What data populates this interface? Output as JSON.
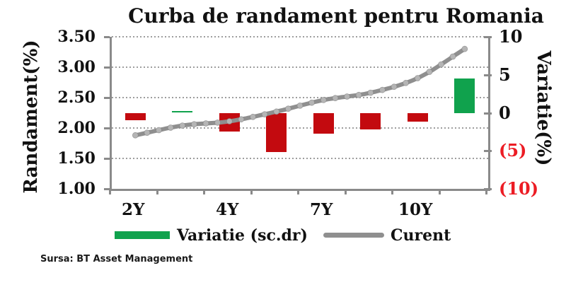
{
  "title": "Curba de randament pentru Romania",
  "source_note": "Sursa: BT Asset Management",
  "legend": {
    "variatie_label": "Variatie (sc.dr)",
    "curent_label": "Curent"
  },
  "colors": {
    "bar_negative": "#c30a0f",
    "bar_positive": "#10a24d",
    "line": "#8f8f8f",
    "marker": "#b5b5b5",
    "axis": "#8a8a8a",
    "gridline": "#9e9e9e",
    "negative_tick_text": "#ec1c24",
    "text": "#111111"
  },
  "chart_data": {
    "type": "combo (bar + line, dual axis)",
    "n_categories": 8,
    "x_tick_labels": [
      {
        "index": 0,
        "label": "2Y"
      },
      {
        "index": 2,
        "label": "4Y"
      },
      {
        "index": 4,
        "label": "7Y"
      },
      {
        "index": 6,
        "label": "10Y"
      }
    ],
    "left_axis": {
      "label": "Randament(%)",
      "min": 1.0,
      "max": 3.5,
      "ticks": [
        "3.50",
        "3.00",
        "2.50",
        "2.00",
        "1.50",
        "1.00"
      ],
      "gridlines": "dotted horizontal"
    },
    "right_axis": {
      "label": "Variatie(%)",
      "min": -10,
      "max": 10,
      "ticks": [
        {
          "label": "10",
          "value": 10,
          "negative": false
        },
        {
          "label": "5",
          "value": 5,
          "negative": false
        },
        {
          "label": "0",
          "value": 0,
          "negative": false
        },
        {
          "label": "(5)",
          "value": -5,
          "negative": true
        },
        {
          "label": "(10)",
          "value": -10,
          "negative": true
        }
      ]
    },
    "series": [
      {
        "name": "Variatie (sc.dr)",
        "type": "bar",
        "axis": "right",
        "values": [
          -1.0,
          0.2,
          -2.5,
          -5.2,
          -2.7,
          -2.2,
          -1.2,
          4.5
        ]
      },
      {
        "name": "Curent",
        "type": "line",
        "axis": "left",
        "values": [
          1.88,
          2.04,
          2.11,
          2.27,
          2.46,
          2.58,
          2.82,
          3.3
        ],
        "markers": 29
      }
    ]
  }
}
